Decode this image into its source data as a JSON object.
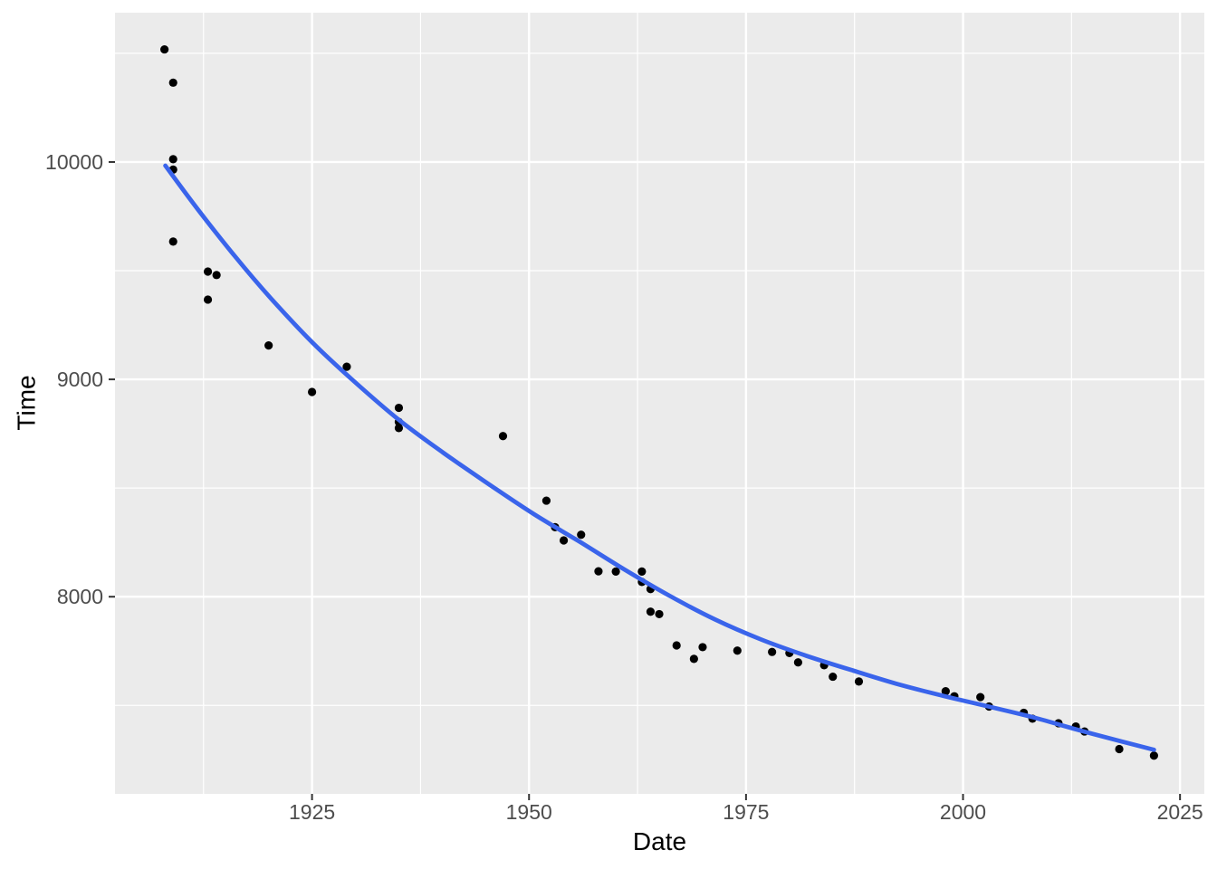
{
  "figure": {
    "kind": "ggplot-scatter-with-smooth",
    "background": "#FFFFFF"
  },
  "chart_data": {
    "type": "scatter",
    "title": "",
    "xlabel": "Date",
    "ylabel": "Time",
    "xlim": [
      1902.3,
      2027.8
    ],
    "ylim": [
      7093,
      10687
    ],
    "x_ticks": [
      1925,
      1950,
      1975,
      2000,
      2025
    ],
    "y_ticks": [
      8000,
      9000,
      10000
    ],
    "x_minor_ticks": [
      1912.5,
      1937.5,
      1962.5,
      1987.5,
      2012.5
    ],
    "y_minor_ticks": [
      7500,
      8500,
      9500,
      10500
    ],
    "grid": true,
    "legend_position": "none",
    "series": [
      {
        "name": "record-points",
        "type": "scatter",
        "points": [
          [
            1908,
            10518
          ],
          [
            1909,
            10365
          ],
          [
            1909,
            10013
          ],
          [
            1909,
            9965
          ],
          [
            1909,
            9634
          ],
          [
            1913,
            9496
          ],
          [
            1914,
            9480
          ],
          [
            1913,
            9367
          ],
          [
            1920,
            9156
          ],
          [
            1925,
            8942
          ],
          [
            1929,
            9058
          ],
          [
            1935,
            8869
          ],
          [
            1935,
            8804
          ],
          [
            1935,
            8776
          ],
          [
            1947,
            8739
          ],
          [
            1952,
            8442
          ],
          [
            1953,
            8320
          ],
          [
            1954,
            8259
          ],
          [
            1956,
            8285
          ],
          [
            1958,
            8117
          ],
          [
            1960,
            8116
          ],
          [
            1963,
            8116
          ],
          [
            1963,
            8068
          ],
          [
            1964,
            8035
          ],
          [
            1964,
            7931
          ],
          [
            1965,
            7920
          ],
          [
            1967,
            7776
          ],
          [
            1969,
            7714
          ],
          [
            1970,
            7768
          ],
          [
            1974,
            7752
          ],
          [
            1978,
            7746
          ],
          [
            1980,
            7741
          ],
          [
            1981,
            7698
          ],
          [
            1984,
            7685
          ],
          [
            1985,
            7632
          ],
          [
            1988,
            7610
          ],
          [
            1998,
            7565
          ],
          [
            1999,
            7542
          ],
          [
            2002,
            7538
          ],
          [
            2003,
            7495
          ],
          [
            2007,
            7466
          ],
          [
            2008,
            7439
          ],
          [
            2011,
            7418
          ],
          [
            2013,
            7403
          ],
          [
            2014,
            7380
          ],
          [
            2018,
            7299
          ],
          [
            2022,
            7269
          ]
        ]
      },
      {
        "name": "loess-smooth",
        "type": "line",
        "points": [
          [
            1908.1,
            9983
          ],
          [
            1911.9,
            9779
          ],
          [
            1916.1,
            9567
          ],
          [
            1920.3,
            9371
          ],
          [
            1925.0,
            9171
          ],
          [
            1929.7,
            8996
          ],
          [
            1934.9,
            8817
          ],
          [
            1940.1,
            8663
          ],
          [
            1945.4,
            8517
          ],
          [
            1950.6,
            8379
          ],
          [
            1955.8,
            8254
          ],
          [
            1961.0,
            8125
          ],
          [
            1966.2,
            8004
          ],
          [
            1971.4,
            7896
          ],
          [
            1976.7,
            7804
          ],
          [
            1981.9,
            7729
          ],
          [
            1987.1,
            7663
          ],
          [
            1992.3,
            7600
          ],
          [
            1997.5,
            7546
          ],
          [
            2002.8,
            7496
          ],
          [
            2008.0,
            7446
          ],
          [
            2013.2,
            7388
          ],
          [
            2018.4,
            7333
          ],
          [
            2022.0,
            7296
          ]
        ]
      }
    ],
    "colors": {
      "panel_background": "#EBEBEB",
      "grid": "#FFFFFF",
      "point": "#000000",
      "smooth_line": "#3A64EB",
      "axis_text": "#4D4D4D",
      "axis_title": "#000000",
      "tick_mark": "#333333",
      "outer_background": "#FFFFFF"
    }
  }
}
